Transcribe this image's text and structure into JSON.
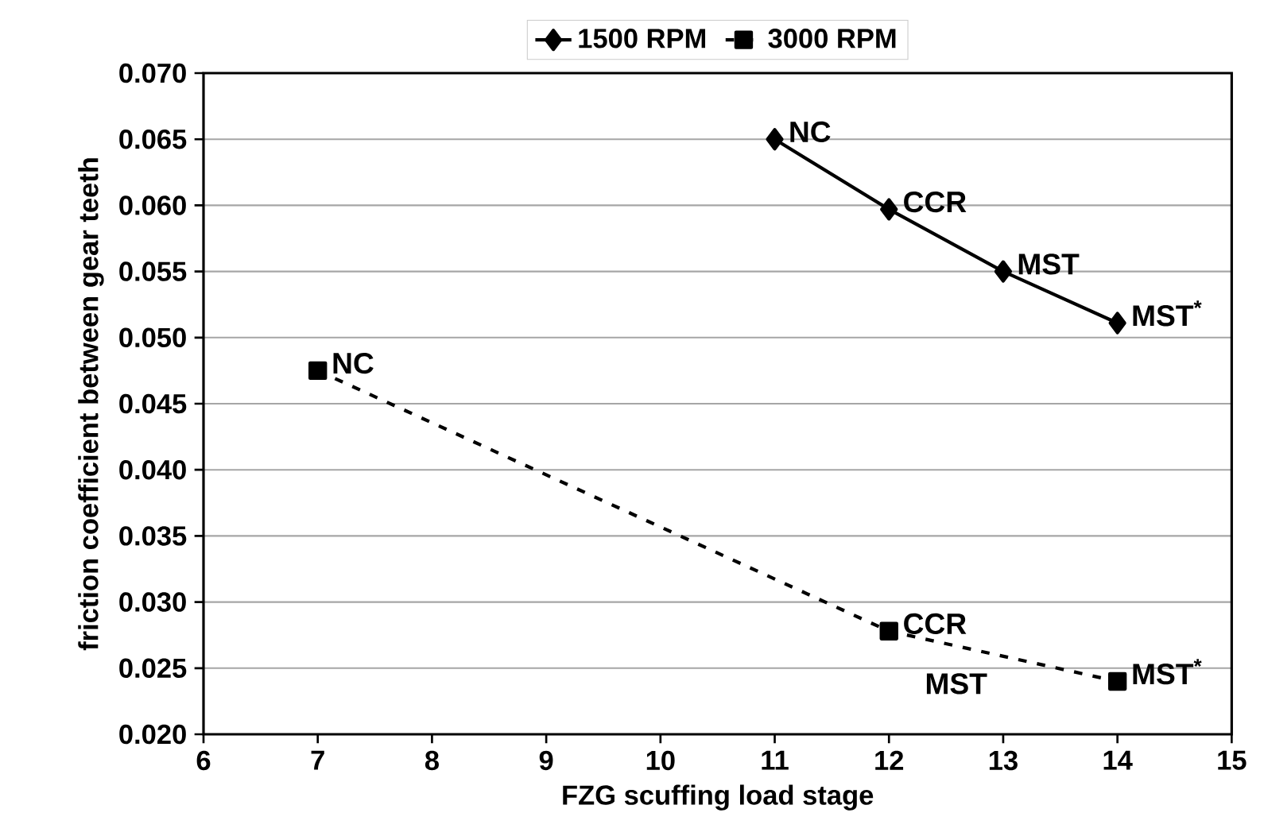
{
  "chart_data": {
    "type": "line",
    "xlabel": "FZG scuffing load stage",
    "ylabel": "friction coefficient between gear teeth",
    "xlim": [
      6,
      15
    ],
    "xticks": [
      6,
      7,
      8,
      9,
      10,
      11,
      12,
      13,
      14,
      15
    ],
    "ylim": [
      0.02,
      0.07
    ],
    "yticks": [
      {
        "value": 0.02,
        "label": "0.020"
      },
      {
        "value": 0.025,
        "label": "0.025"
      },
      {
        "value": 0.03,
        "label": "0.030"
      },
      {
        "value": 0.035,
        "label": "0.035"
      },
      {
        "value": 0.04,
        "label": "0.040"
      },
      {
        "value": 0.045,
        "label": "0.045"
      },
      {
        "value": 0.05,
        "label": "0.050"
      },
      {
        "value": 0.055,
        "label": "0.055"
      },
      {
        "value": 0.06,
        "label": "0.060"
      },
      {
        "value": 0.065,
        "label": "0.065"
      },
      {
        "value": 0.07,
        "label": "0.070"
      }
    ],
    "grid": "y",
    "legend": "top",
    "series": [
      {
        "name": "1500 RPM",
        "color": "#000000",
        "marker": "diamond",
        "line_style": "solid",
        "x": [
          11,
          12,
          13,
          14
        ],
        "values": [
          0.065,
          0.0597,
          0.055,
          0.0511
        ]
      },
      {
        "name": "3000 RPM",
        "color": "#000000",
        "marker": "square",
        "line_style": "dashed",
        "x": [
          7,
          12,
          14
        ],
        "values": [
          0.0475,
          0.0278,
          0.024
        ]
      }
    ],
    "annotations": [
      {
        "text": "NC",
        "x": 11,
        "y": 0.065
      },
      {
        "text": "CCR",
        "x": 12,
        "y": 0.0597
      },
      {
        "text": "MST",
        "x": 13,
        "y": 0.055
      },
      {
        "text": "MST$^{*}$",
        "x": 14,
        "y": 0.0511
      },
      {
        "text": "NC",
        "x": 7,
        "y": 0.0475
      },
      {
        "text": "CCR",
        "x": 12,
        "y": 0.0278
      },
      {
        "text": "MST",
        "x": 13,
        "y": 0.0255
      },
      {
        "text": "MST$^{*}$",
        "x": 14,
        "y": 0.024
      }
    ]
  }
}
